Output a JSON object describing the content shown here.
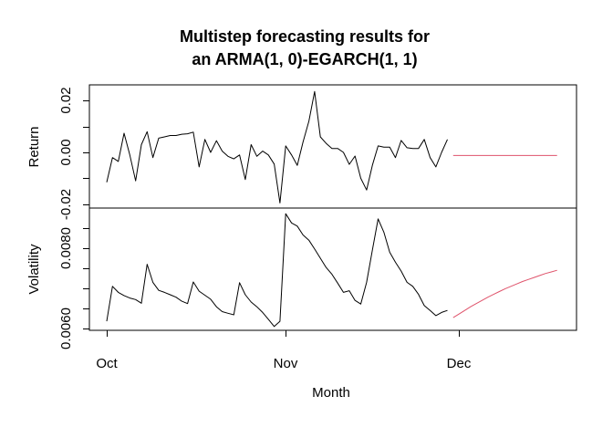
{
  "chart_data": {
    "type": "line",
    "title_line1": "Multistep forecasting results for",
    "title_line2": "an ARMA(1, 0)-EGARCH(1, 1)",
    "xlabel": "Month",
    "x_axis": {
      "tick_labels": [
        "Oct",
        "Nov",
        "Dec"
      ],
      "tick_days": [
        0,
        31,
        61
      ]
    },
    "colors": {
      "observed": "#000000",
      "forecast": "#DF536B"
    },
    "panels": [
      {
        "ylabel": "Return",
        "ylim": [
          -0.0215,
          0.026
        ],
        "ticks": [
          {
            "value": 0.02,
            "label": "0.02"
          },
          {
            "value": 0.01,
            "label": ""
          },
          {
            "value": 0.0,
            "label": "0.00"
          },
          {
            "value": -0.01,
            "label": ""
          },
          {
            "value": -0.02,
            "label": "-0.02"
          }
        ],
        "series": [
          {
            "name": "observed",
            "color_key": "observed",
            "start_day": 0,
            "values": [
              -0.0115,
              -0.002,
              -0.0035,
              0.0074,
              -0.001,
              -0.011,
              0.003,
              0.008,
              -0.002,
              0.0055,
              0.006,
              0.0065,
              0.0065,
              0.007,
              0.0072,
              0.0078,
              -0.0056,
              0.005,
              0.0,
              0.0045,
              0.0005,
              -0.0015,
              -0.0025,
              -0.001,
              -0.0105,
              0.003,
              -0.0015,
              0.0005,
              -0.001,
              -0.0045,
              -0.0195,
              0.0025,
              -0.001,
              -0.005,
              0.004,
              0.012,
              0.0235,
              0.006,
              0.0035,
              0.0015,
              0.0015,
              0.0,
              -0.0046,
              -0.0014,
              -0.01,
              -0.0145,
              -0.005,
              0.0025,
              0.002,
              0.002,
              -0.002,
              0.0046,
              0.0018,
              0.0015,
              0.0015,
              0.005,
              -0.002,
              -0.0056,
              0.0,
              0.005
            ]
          },
          {
            "name": "forecast",
            "color_key": "forecast",
            "start_day": 60,
            "values": [
              -0.0012,
              -0.0012,
              -0.0012,
              -0.0012,
              -0.0012,
              -0.0012,
              -0.0012,
              -0.0012,
              -0.0012,
              -0.0012,
              -0.0012,
              -0.0012,
              -0.0012,
              -0.0012,
              -0.0012,
              -0.0012,
              -0.0012,
              -0.0012,
              -0.0012
            ]
          }
        ]
      },
      {
        "ylabel": "Volatility",
        "ylim": [
          0.00595,
          0.00905
        ],
        "ticks": [
          {
            "value": 0.006,
            "label": "0.0060"
          },
          {
            "value": 0.0065,
            "label": ""
          },
          {
            "value": 0.007,
            "label": ""
          },
          {
            "value": 0.0075,
            "label": ""
          },
          {
            "value": 0.008,
            "label": "0.0080"
          },
          {
            "value": 0.0085,
            "label": ""
          }
        ],
        "series": [
          {
            "name": "observed",
            "color_key": "observed",
            "start_day": 0,
            "values": [
              0.00618,
              0.00705,
              0.0069,
              0.00682,
              0.00676,
              0.00672,
              0.00663,
              0.0076,
              0.00715,
              0.00695,
              0.0069,
              0.00684,
              0.00678,
              0.00668,
              0.00662,
              0.00716,
              0.00693,
              0.00683,
              0.00673,
              0.00654,
              0.00642,
              0.00638,
              0.00634,
              0.00714,
              0.00684,
              0.00666,
              0.00654,
              0.0064,
              0.00623,
              0.00605,
              0.00618,
              0.00886,
              0.00863,
              0.00855,
              0.00833,
              0.0082,
              0.00798,
              0.00775,
              0.00752,
              0.00735,
              0.00713,
              0.0069,
              0.00694,
              0.0067,
              0.00661,
              0.00715,
              0.00795,
              0.00873,
              0.0084,
              0.0079,
              0.00765,
              0.00743,
              0.00715,
              0.00705,
              0.00685,
              0.00657,
              0.00645,
              0.00632,
              0.0064,
              0.00645
            ]
          },
          {
            "name": "forecast",
            "color_key": "forecast",
            "start_day": 60,
            "values": [
              0.00627,
              0.00636,
              0.00645,
              0.00654,
              0.00662,
              0.0067,
              0.00678,
              0.00685,
              0.00692,
              0.00699,
              0.00705,
              0.00711,
              0.00717,
              0.00722,
              0.00727,
              0.00732,
              0.00737,
              0.00741,
              0.00745
            ]
          }
        ]
      }
    ]
  }
}
